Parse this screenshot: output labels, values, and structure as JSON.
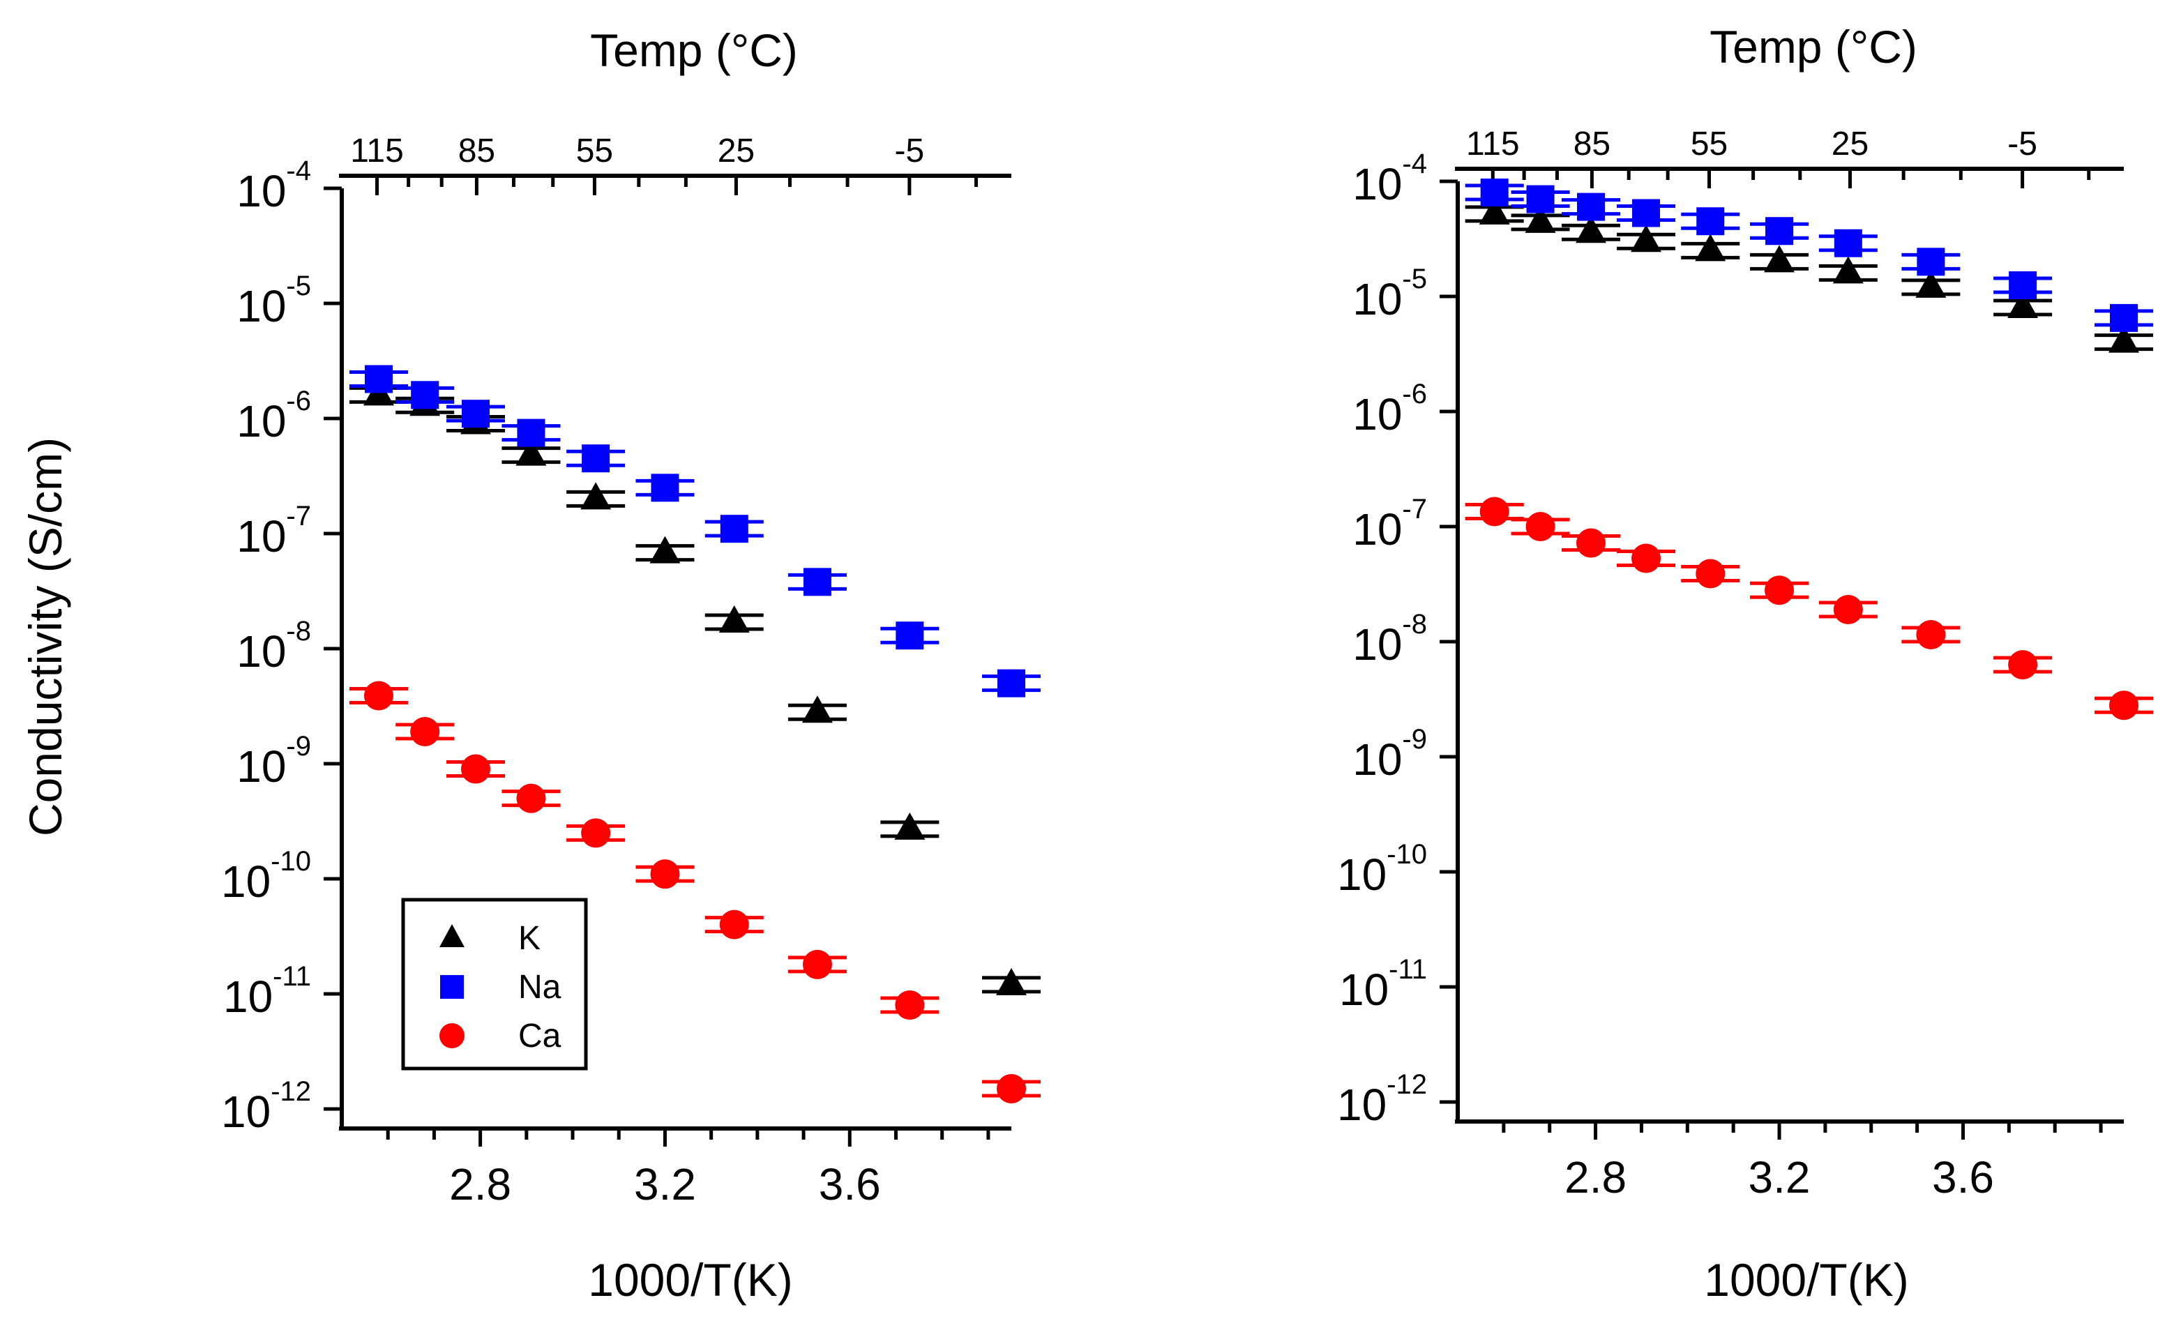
{
  "figure": {
    "xlabel": "1000/T(K)",
    "top_axis_label": "Temp (°C)",
    "ylabel": "Conductivity (S/cm)",
    "colors": {
      "K": "#000000",
      "Na": "#0000ff",
      "Ca": "#ff0000"
    },
    "markers": {
      "K": "triangle",
      "Na": "square",
      "Ca": "circle"
    }
  },
  "chart_data": [
    {
      "type": "scatter",
      "title": "",
      "xlabel": "1000/T(K)",
      "ylabel": "Conductivity (S/cm)",
      "top_xlabel": "Temp (°C)",
      "y_scale": "log",
      "ylim": [
        1e-12,
        0.0001
      ],
      "xlim": [
        2.5,
        3.95
      ],
      "x_ticks": [
        2.8,
        3.2,
        3.6
      ],
      "x_tick_labels": [
        "2.8",
        "3.2",
        "3.6"
      ],
      "y_tick_labels": [
        "10^-4",
        "10^-5",
        "10^-6",
        "10^-7",
        "10^-8",
        "10^-9",
        "10^-10",
        "10^-11",
        "10^-12"
      ],
      "top_ticks_celsius": [
        115,
        105,
        95,
        85,
        75,
        65,
        55,
        45,
        35,
        25,
        15,
        5,
        -5,
        -15,
        -25
      ],
      "top_tick_labels": [
        "115",
        "85",
        "55",
        "25",
        "-5"
      ],
      "legend": {
        "position": "bottom-left",
        "entries": [
          "K",
          "Na",
          "Ca"
        ]
      },
      "x": [
        2.58,
        2.68,
        2.79,
        2.91,
        3.05,
        3.2,
        3.35,
        3.53,
        3.73,
        3.95
      ],
      "series": [
        {
          "name": "K",
          "values": [
            1.6e-06,
            1.3e-06,
            9e-07,
            4.8e-07,
            2e-07,
            6.8e-08,
            1.7e-08,
            2.8e-09,
            2.7e-10,
            1.2e-11
          ]
        },
        {
          "name": "Na",
          "values": [
            2.2e-06,
            1.6e-06,
            1.1e-06,
            7.5e-07,
            4.5e-07,
            2.5e-07,
            1.1e-07,
            3.8e-08,
            1.3e-08,
            5e-09
          ]
        },
        {
          "name": "Ca",
          "values": [
            3.9e-09,
            1.9e-09,
            9e-10,
            5e-10,
            2.5e-10,
            1.1e-10,
            4e-11,
            1.8e-11,
            8e-12,
            1.5e-12
          ]
        }
      ]
    },
    {
      "type": "scatter",
      "title": "",
      "xlabel": "1000/T(K)",
      "ylabel": "",
      "top_xlabel": "Temp (°C)",
      "y_scale": "log",
      "ylim": [
        1e-12,
        0.0001
      ],
      "xlim": [
        2.5,
        3.95
      ],
      "x_ticks": [
        2.8,
        3.2,
        3.6
      ],
      "x_tick_labels": [
        "2.8",
        "3.2",
        "3.6"
      ],
      "y_tick_labels": [
        "10^-4",
        "10^-5",
        "10^-6",
        "10^-7",
        "10^-8",
        "10^-9",
        "10^-10",
        "10^-11",
        "10^-12"
      ],
      "top_ticks_celsius": [
        115,
        105,
        95,
        85,
        75,
        65,
        55,
        45,
        35,
        25,
        15,
        5,
        -5,
        -15,
        -25
      ],
      "top_tick_labels": [
        "115",
        "85",
        "55",
        "25",
        "-5"
      ],
      "x": [
        2.58,
        2.68,
        2.79,
        2.91,
        3.05,
        3.2,
        3.35,
        3.53,
        3.73,
        3.95
      ],
      "series": [
        {
          "name": "K",
          "values": [
            5.2e-05,
            4.4e-05,
            3.6e-05,
            3e-05,
            2.5e-05,
            2e-05,
            1.6e-05,
            1.2e-05,
            8e-06,
            4e-06
          ]
        },
        {
          "name": "Na",
          "values": [
            8e-05,
            7e-05,
            6e-05,
            5.3e-05,
            4.5e-05,
            3.7e-05,
            2.9e-05,
            2e-05,
            1.25e-05,
            6.5e-06
          ]
        },
        {
          "name": "Ca",
          "values": [
            1.35e-07,
            1e-07,
            7.2e-08,
            5.3e-08,
            3.9e-08,
            2.8e-08,
            1.9e-08,
            1.15e-08,
            6.3e-09,
            2.8e-09
          ]
        }
      ]
    }
  ]
}
